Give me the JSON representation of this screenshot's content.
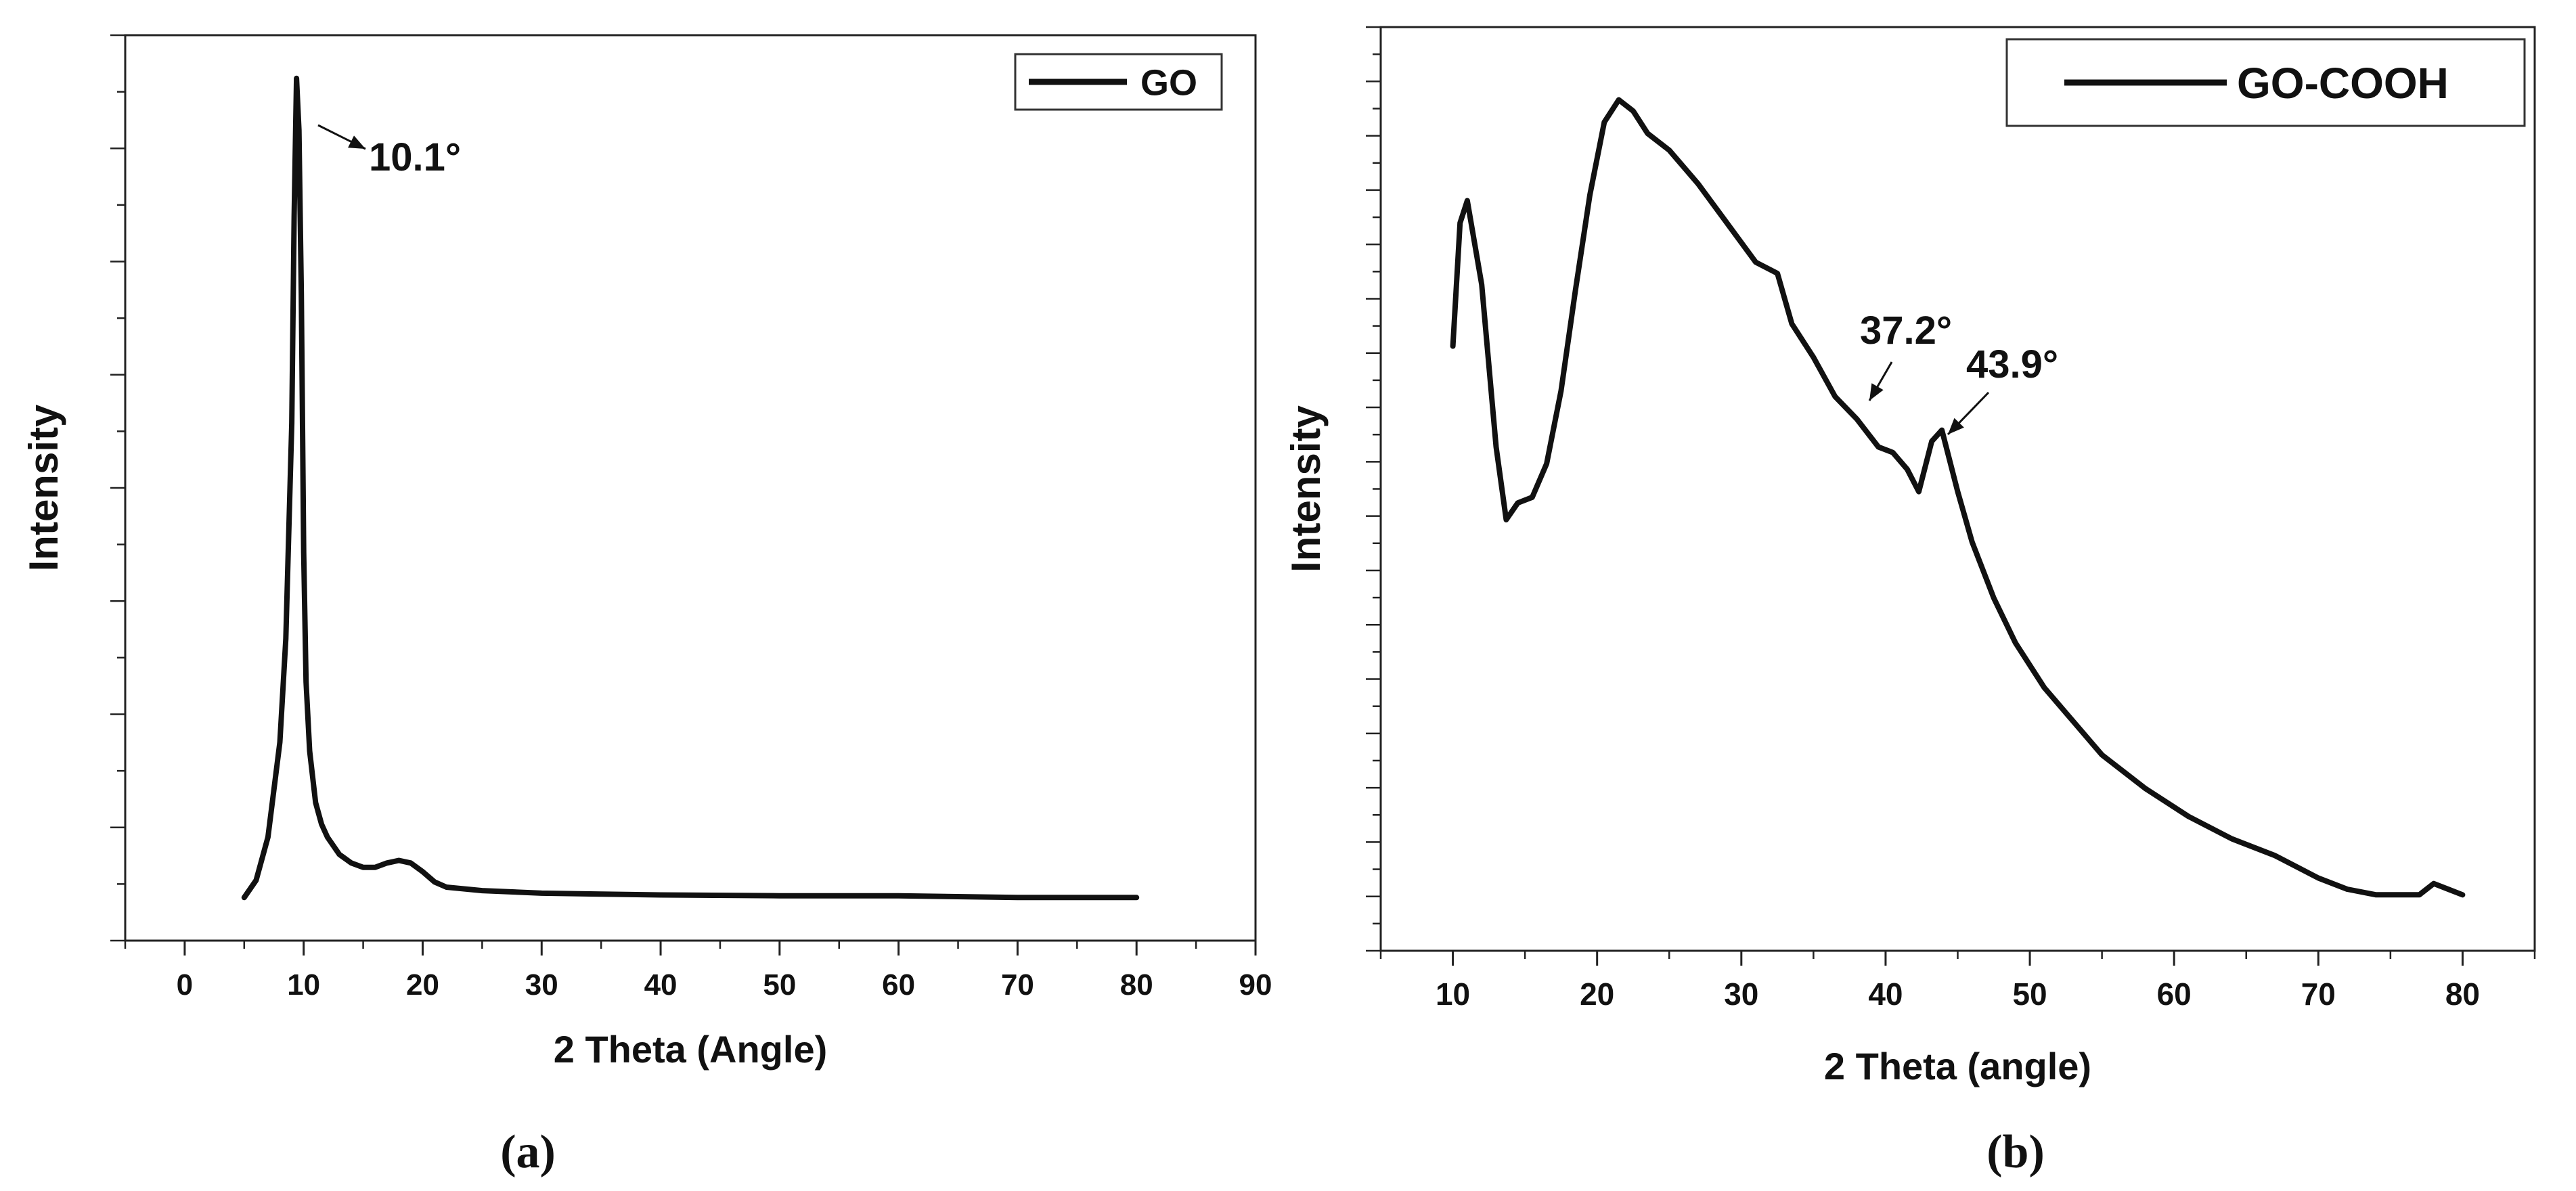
{
  "chart_data": [
    {
      "type": "line",
      "panel_label": "(a)",
      "xlabel": "2 Theta (Angle)",
      "ylabel": "Intensity",
      "xlim": [
        -5,
        90
      ],
      "ylim": [
        -0.05,
        1.0
      ],
      "x_ticks": [
        "0",
        "10",
        "20",
        "30",
        "40",
        "50",
        "60",
        "70",
        "80",
        "90"
      ],
      "y_tick_labels_shown": false,
      "grid": false,
      "legend": {
        "position": "top-right",
        "label": "GO"
      },
      "series": [
        {
          "name": "GO",
          "color": "#111111",
          "x": [
            5.0,
            6.0,
            7.0,
            8.0,
            8.5,
            9.0,
            9.2,
            9.4,
            9.6,
            9.8,
            10.0,
            10.2,
            10.5,
            11.0,
            11.5,
            12.0,
            13.0,
            14.0,
            15.0,
            16.0,
            17.0,
            18.0,
            19.0,
            20.0,
            21.0,
            22.0,
            25.0,
            30.0,
            35.0,
            40.0,
            50.0,
            60.0,
            70.0,
            80.0
          ],
          "y": [
            0.0,
            0.02,
            0.07,
            0.18,
            0.3,
            0.55,
            0.79,
            0.95,
            0.89,
            0.7,
            0.4,
            0.25,
            0.17,
            0.11,
            0.085,
            0.07,
            0.05,
            0.04,
            0.035,
            0.035,
            0.04,
            0.043,
            0.04,
            0.03,
            0.018,
            0.012,
            0.008,
            0.005,
            0.004,
            0.003,
            0.002,
            0.002,
            0.0,
            0.0
          ]
        }
      ],
      "annotations": [
        {
          "text": "10.1°",
          "x": 9.8,
          "y": 0.95
        }
      ]
    },
    {
      "type": "line",
      "panel_label": "(b)",
      "xlabel": "2 Theta (angle)",
      "ylabel": "Intensity",
      "xlim": [
        5,
        85
      ],
      "ylim": [
        -0.1,
        1.55
      ],
      "x_ticks": [
        "10",
        "20",
        "30",
        "40",
        "50",
        "60",
        "70",
        "80"
      ],
      "y_tick_labels_shown": false,
      "grid": false,
      "legend": {
        "position": "top-right",
        "label": "GO-COOH"
      },
      "series": [
        {
          "name": "GO-COOH",
          "color": "#111111",
          "x": [
            10.0,
            10.5,
            11.0,
            12.0,
            13.0,
            13.7,
            14.5,
            15.5,
            16.5,
            17.5,
            18.5,
            19.5,
            20.5,
            21.5,
            22.5,
            23.5,
            25.0,
            27.0,
            29.0,
            31.0,
            32.5,
            33.5,
            35.0,
            36.5,
            38.0,
            39.5,
            40.5,
            41.5,
            42.3,
            43.2,
            43.9,
            45.0,
            46.0,
            47.5,
            49.0,
            51.0,
            53.0,
            55.0,
            58.0,
            61.0,
            64.0,
            67.0,
            70.0,
            72.0,
            74.0,
            76.0,
            77.0,
            78.0,
            79.0,
            80.0
          ],
          "y": [
            0.98,
            1.2,
            1.24,
            1.09,
            0.8,
            0.67,
            0.7,
            0.71,
            0.77,
            0.9,
            1.08,
            1.25,
            1.38,
            1.42,
            1.4,
            1.36,
            1.33,
            1.27,
            1.2,
            1.13,
            1.11,
            1.02,
            0.96,
            0.89,
            0.85,
            0.8,
            0.79,
            0.76,
            0.72,
            0.81,
            0.83,
            0.72,
            0.63,
            0.53,
            0.45,
            0.37,
            0.31,
            0.25,
            0.19,
            0.14,
            0.1,
            0.07,
            0.03,
            0.01,
            0.0,
            0.0,
            0.0,
            0.02,
            0.01,
            0.0
          ]
        }
      ],
      "annotations": [
        {
          "text": "37.2°",
          "x": 37.2,
          "y": 0.87
        },
        {
          "text": "43.9°",
          "x": 43.9,
          "y": 0.83
        }
      ]
    }
  ]
}
